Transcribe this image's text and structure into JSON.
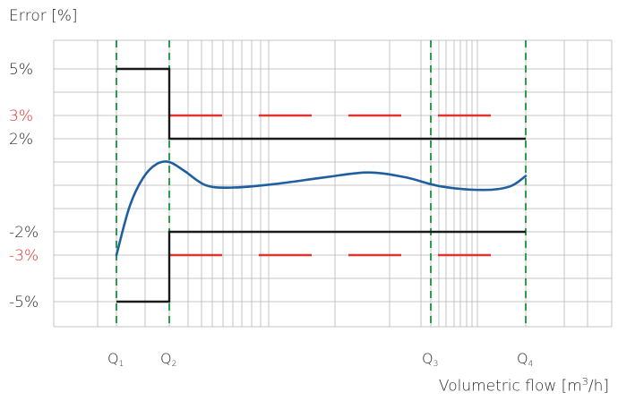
{
  "chart_data": {
    "type": "line",
    "ylabel": "Error [%]",
    "xlabel_prefix": "Volumetric flow [m",
    "xlabel_sup": "3",
    "xlabel_suffix": "/h]",
    "y_ticks": [
      {
        "value": 5,
        "label": "5%",
        "color": "#2b2b2b"
      },
      {
        "value": 3,
        "label": "3%",
        "color": "#e0342f"
      },
      {
        "value": 2,
        "label": "2%",
        "color": "#2b2b2b"
      },
      {
        "value": -2,
        "label": "-2%",
        "color": "#2b2b2b"
      },
      {
        "value": -3,
        "label": "-3%",
        "color": "#e0342f"
      },
      {
        "value": -5,
        "label": "-5%",
        "color": "#2b2b2b"
      }
    ],
    "ylim": [
      -6,
      7
    ],
    "x_markers": [
      {
        "name": "Q",
        "sub": "1",
        "x": 1.0
      },
      {
        "name": "Q",
        "sub": "2",
        "x": 2.0
      },
      {
        "name": "Q",
        "sub": "3",
        "x": 7.0
      },
      {
        "name": "Q",
        "sub": "4",
        "x": 8.8
      }
    ],
    "xlim": [
      0,
      10
    ],
    "limit_lines": {
      "mpe_outer": {
        "color": "#1a1a1a",
        "upper": [
          [
            1.0,
            5
          ],
          [
            2.0,
            5
          ],
          [
            2.0,
            2
          ],
          [
            8.8,
            2
          ]
        ],
        "lower": [
          [
            1.0,
            -5
          ],
          [
            2.0,
            -5
          ],
          [
            2.0,
            -2
          ],
          [
            8.8,
            -2
          ]
        ]
      },
      "mpe_red": {
        "color": "#e0342f",
        "upper": [
          [
            2.0,
            3
          ],
          [
            8.8,
            3
          ]
        ],
        "lower": [
          [
            2.0,
            -3
          ],
          [
            8.8,
            -3
          ]
        ]
      }
    },
    "series": [
      {
        "color": "#1f5fa0",
        "x": [
          1.0,
          1.25,
          1.5,
          1.75,
          2.0,
          2.3,
          2.7,
          3.2,
          4.0,
          5.0,
          5.8,
          6.5,
          7.2,
          8.0,
          8.5,
          8.8
        ],
        "y": [
          -3.0,
          -0.9,
          0.3,
          0.9,
          1.0,
          0.6,
          0.0,
          -0.1,
          0.05,
          0.35,
          0.55,
          0.35,
          -0.05,
          -0.2,
          -0.05,
          0.4
        ]
      }
    ],
    "grid": true
  }
}
